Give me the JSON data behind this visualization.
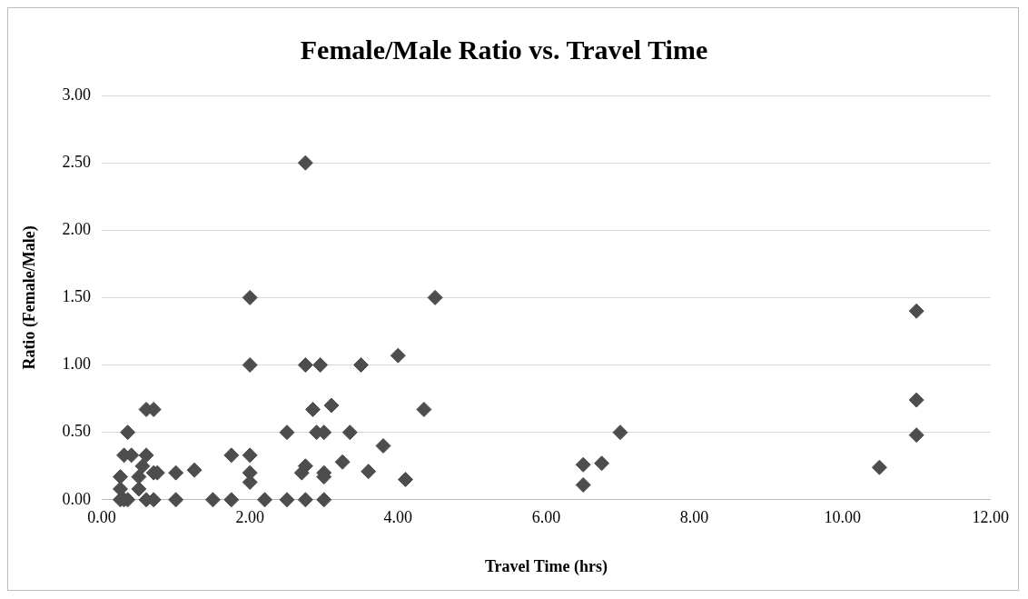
{
  "chart_data": {
    "type": "scatter",
    "title": "Female/Male Ratio vs. Travel Time",
    "xlabel": "Travel Time (hrs)",
    "ylabel": "Ratio (Female/Male)",
    "xlim": [
      0,
      12
    ],
    "xticks": [
      {
        "value": 0,
        "label": "0.00"
      },
      {
        "value": 2,
        "label": "2.00"
      },
      {
        "value": 4,
        "label": "4.00"
      },
      {
        "value": 6,
        "label": "6.00"
      },
      {
        "value": 8,
        "label": "8.00"
      },
      {
        "value": 10,
        "label": "10.00"
      },
      {
        "value": 12,
        "label": "12.00"
      }
    ],
    "ylim": [
      0,
      3
    ],
    "yticks": [
      {
        "value": 0,
        "label": "0.00"
      },
      {
        "value": 0.5,
        "label": "0.50"
      },
      {
        "value": 1,
        "label": "1.00"
      },
      {
        "value": 1.5,
        "label": "1.50"
      },
      {
        "value": 2,
        "label": "2.00"
      },
      {
        "value": 2.5,
        "label": "2.50"
      },
      {
        "value": 3,
        "label": "3.00"
      }
    ],
    "grid": "y",
    "marker": "diamond",
    "legend": false,
    "series": [
      {
        "color": "#4d4d4d",
        "x": [
          0.25,
          0.3,
          0.35,
          0.25,
          0.3,
          0.4,
          0.35,
          0.25,
          0.5,
          0.5,
          0.6,
          0.55,
          0.6,
          0.7,
          0.6,
          0.7,
          0.7,
          0.75,
          1.0,
          1.0,
          1.25,
          1.5,
          1.75,
          1.75,
          2.0,
          2.0,
          2.0,
          2.0,
          2.0,
          2.2,
          2.5,
          2.5,
          2.75,
          2.7,
          2.75,
          2.75,
          2.75,
          2.85,
          2.9,
          2.95,
          3.0,
          3.0,
          3.0,
          3.0,
          3.1,
          3.25,
          3.35,
          3.5,
          3.6,
          3.8,
          4.0,
          4.1,
          4.35,
          4.5,
          6.5,
          6.5,
          6.75,
          7.0,
          10.5,
          11.0,
          11.0,
          11.0
        ],
        "values": [
          0,
          0,
          0,
          0.17,
          0.33,
          0.33,
          0.5,
          0.08,
          0.08,
          0.17,
          0.33,
          0.25,
          0.67,
          0.67,
          0,
          0,
          0.2,
          0.2,
          0.2,
          0,
          0.22,
          0,
          0,
          0.33,
          0.33,
          0.2,
          0.13,
          1.0,
          1.5,
          0,
          0,
          0.5,
          0,
          0.2,
          0.25,
          1.0,
          2.5,
          0.67,
          0.5,
          1.0,
          0.5,
          0.2,
          0.17,
          0,
          0.7,
          0.28,
          0.5,
          1.0,
          0.21,
          0.4,
          1.07,
          0.15,
          0.67,
          1.5,
          0.26,
          0.11,
          0.27,
          0.5,
          0.24,
          1.4,
          0.74,
          0.48
        ]
      }
    ]
  }
}
